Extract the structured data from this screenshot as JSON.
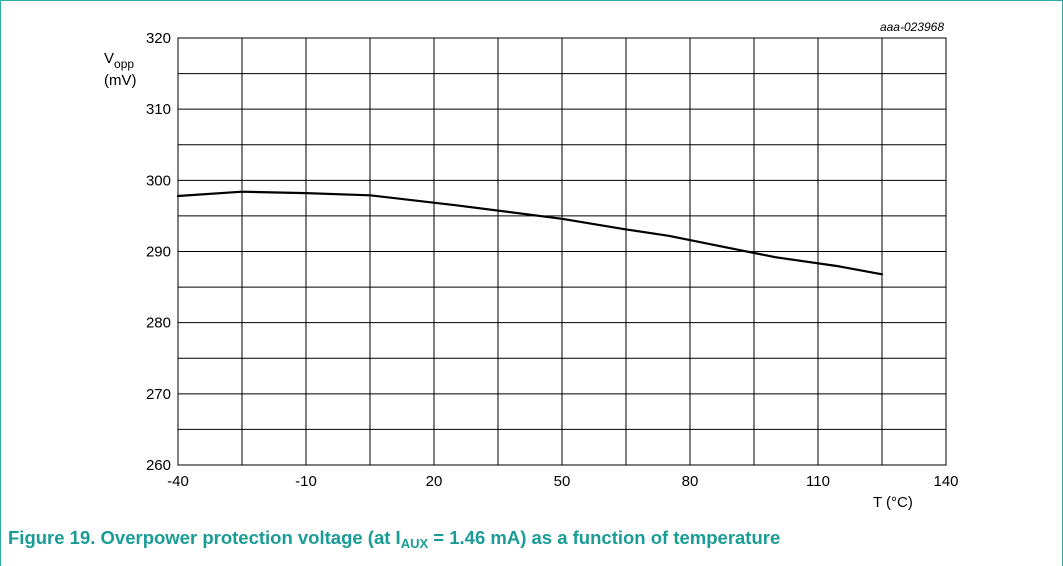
{
  "figure_code": "aaa-023968",
  "caption": {
    "prefix": "Figure 19. Overpower protection voltage (at I",
    "sub": "AUX",
    "suffix": " = 1.46 mA) as a function of temperature"
  },
  "chart_data": {
    "type": "line",
    "title": "",
    "ylabel_main": "V",
    "ylabel_sub": "opp",
    "ylabel_unit": "(mV)",
    "xlabel": "T (°C)",
    "xlim": [
      -40,
      140
    ],
    "ylim": [
      260,
      320
    ],
    "xticks": [
      -40,
      -10,
      20,
      50,
      80,
      110,
      140
    ],
    "yticks": [
      260,
      270,
      280,
      290,
      300,
      310,
      320
    ],
    "grid": true,
    "series": [
      {
        "color": "#000000",
        "x": [
          -40,
          -25,
          -10,
          5,
          25,
          50,
          65,
          75,
          90,
          100,
          115,
          125
        ],
        "y": [
          297.8,
          298.4,
          298.2,
          297.9,
          296.5,
          294.6,
          293.1,
          292.2,
          290.4,
          289.2,
          287.9,
          286.8
        ]
      }
    ]
  }
}
